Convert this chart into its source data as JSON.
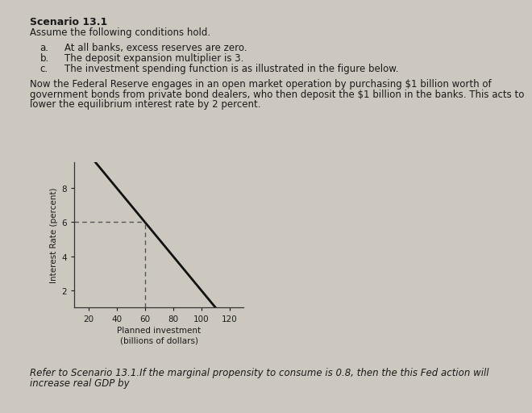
{
  "title": "Scenario 13.1",
  "subtitle": "Assume the following conditions hold.",
  "conditions": [
    [
      "a.",
      "At all banks, excess reserves are zero."
    ],
    [
      "b.",
      "The deposit expansion multiplier is 3."
    ],
    [
      "c.",
      "The investment spending function is as illustrated in the figure below."
    ]
  ],
  "para_line1": "Now the Federal Reserve engages in an open market operation by purchasing $1 billion worth of",
  "para_line2": "government bonds from private bond dealers, who then deposit the $1 billion in the banks. This acts to",
  "para_line3": "lower the equilibrium interest rate by 2 percent.",
  "bottom_line1": "Refer to Scenario 13.1.If the marginal propensity to consume is 0.8, then the this Fed action will",
  "bottom_line2": "increase real GDP by",
  "xlabel": "Planned investment\n(billions of dollars)",
  "ylabel": "Interest Rate (percent)",
  "xlim": [
    10,
    130
  ],
  "ylim": [
    1,
    9.5
  ],
  "xticks": [
    20,
    40,
    60,
    80,
    100,
    120
  ],
  "yticks": [
    2,
    4,
    6,
    8
  ],
  "dashed_x": 60,
  "dashed_y": 6,
  "bg_color": "#cdc8bf",
  "text_color": "#1a1a1a",
  "line_color": "#111111",
  "dashed_color": "#555555",
  "font_size": 8.5,
  "title_font_size": 9.0
}
